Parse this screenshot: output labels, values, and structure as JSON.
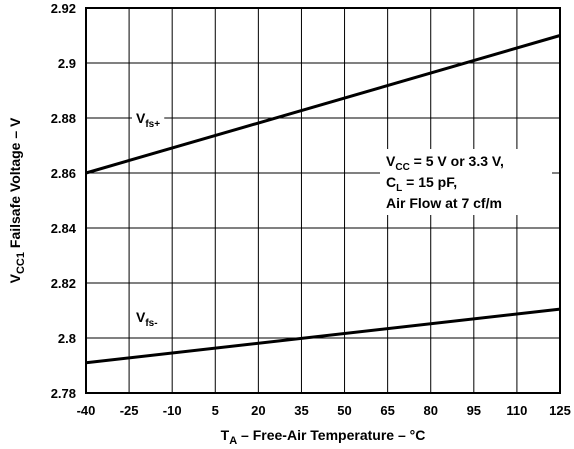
{
  "chart_data": {
    "type": "line",
    "xlabel": {
      "main": "T",
      "sub": "A",
      "rest": " – Free-Air Temperature – °C"
    },
    "ylabel": {
      "main": "V",
      "sub": "CC1",
      "rest": " Failsafe Voltage – V"
    },
    "xlim": [
      -40,
      125
    ],
    "ylim": [
      2.78,
      2.92
    ],
    "x_ticks": [
      -40,
      -25,
      -10,
      5,
      20,
      35,
      50,
      65,
      80,
      95,
      110,
      125
    ],
    "x_tick_labels": [
      "-40",
      "-25",
      "-10",
      "5",
      "20",
      "35",
      "50",
      "65",
      "80",
      "95",
      "110",
      "125"
    ],
    "y_ticks": [
      2.78,
      2.8,
      2.82,
      2.84,
      2.86,
      2.88,
      2.9,
      2.92
    ],
    "y_tick_labels": [
      "2.78",
      "2.8",
      "2.82",
      "2.84",
      "2.86",
      "2.88",
      "2.9",
      "2.92"
    ],
    "grid": true,
    "series": [
      {
        "name": "V_fs+",
        "label_main": "V",
        "label_sub": "fs+",
        "color": "#000000",
        "x": [
          -40,
          125
        ],
        "y": [
          2.86,
          2.91
        ]
      },
      {
        "name": "V_fs-",
        "label_main": "V",
        "label_sub": "fs-",
        "color": "#000000",
        "x": [
          -40,
          125
        ],
        "y": [
          2.791,
          2.8105
        ]
      }
    ],
    "annotation": [
      {
        "main": "V",
        "sub": "CC",
        "rest": " = 5 V or 3.3 V,"
      },
      {
        "main": "C",
        "sub": "L",
        "rest": "  = 15 pF,"
      },
      {
        "main": "Air Flow at 7 cf/m",
        "sub": "",
        "rest": ""
      }
    ]
  }
}
